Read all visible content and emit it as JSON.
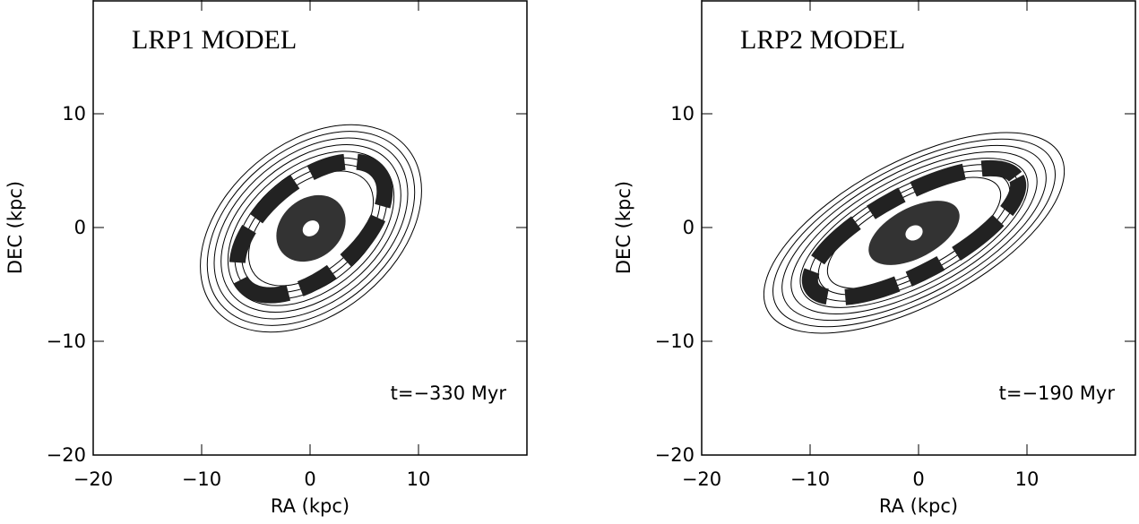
{
  "chart_data": [
    {
      "type": "contour",
      "title": "LRP1 MODEL",
      "annotation": "t=−330 Myr",
      "xlabel": "RA (kpc)",
      "ylabel": "DEC (kpc)",
      "xlim": [
        -20,
        20
      ],
      "ylim": [
        -20,
        20
      ],
      "xticks": [
        {
          "value": -20,
          "label": "−20"
        },
        {
          "value": -10,
          "label": "−10"
        },
        0,
        10
      ],
      "yticks": [
        {
          "value": -20,
          "label": "−20"
        },
        {
          "value": -10,
          "label": "−10"
        },
        0,
        10
      ]
    },
    {
      "type": "contour",
      "title": "LRP2 MODEL",
      "annotation": "t=−190 Myr",
      "xlabel": "RA (kpc)",
      "ylabel": "DEC (kpc)",
      "xlim": [
        -20,
        20
      ],
      "ylim": [
        -20,
        20
      ],
      "xticks": [
        {
          "value": -20,
          "label": "−20"
        },
        {
          "value": -10,
          "label": "−10"
        },
        0,
        10
      ],
      "yticks": [
        {
          "value": -20,
          "label": "−20"
        },
        {
          "value": -10,
          "label": "−10"
        },
        0,
        10
      ]
    }
  ]
}
